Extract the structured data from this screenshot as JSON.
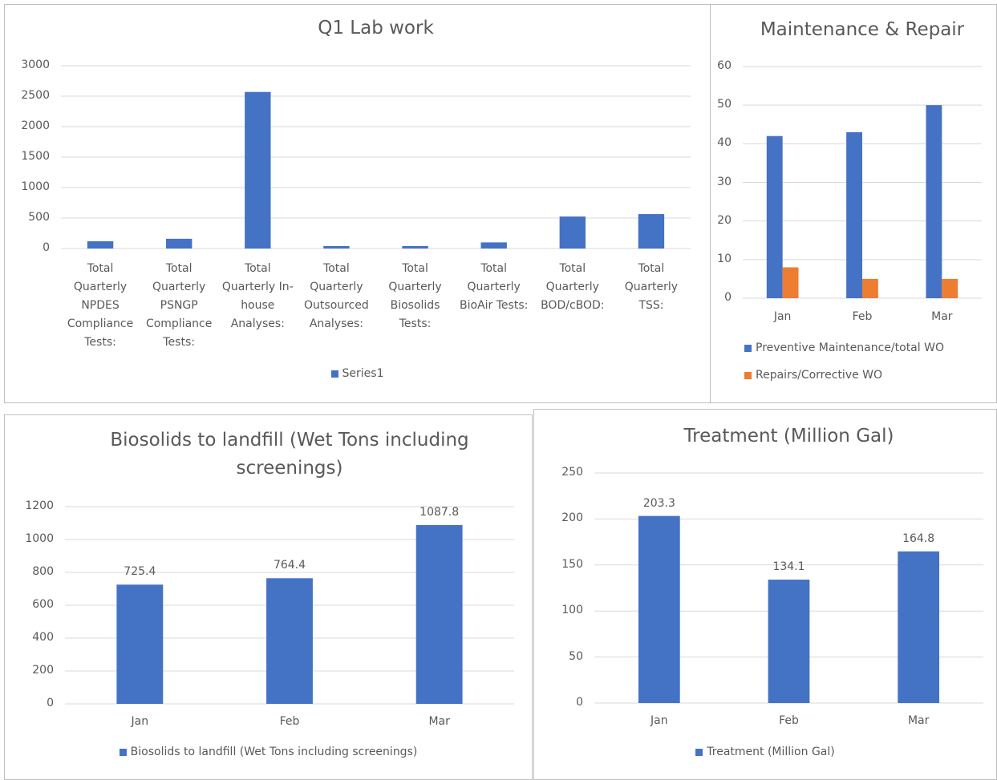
{
  "chart_data": [
    {
      "type": "bar",
      "title": "Q1 Lab work",
      "categories": [
        "Total Quarterly NPDES Compliance Tests:",
        "Total Quarterly PSNGP Compliance Tests:",
        "Total Quarterly In-house Analyses:",
        "Total Quarterly Outsourced Analyses:",
        "Total Quarterly Biosolids Tests:",
        "Total Quarterly BioAir Tests:",
        "Total Quarterly BOD/cBOD:",
        "Total Quarterly TSS:"
      ],
      "series": [
        {
          "name": "Series1",
          "color": "#4472c4",
          "values": [
            120,
            160,
            2570,
            40,
            40,
            100,
            525,
            565
          ]
        }
      ],
      "ylim": [
        0,
        3000
      ],
      "yticks": [
        0,
        500,
        1000,
        1500,
        2000,
        2500,
        3000
      ],
      "grid": true,
      "legend": "bottom"
    },
    {
      "type": "bar",
      "title": "Maintenance & Repair",
      "categories": [
        "Jan",
        "Feb",
        "Mar"
      ],
      "series": [
        {
          "name": "Preventive Maintenance/total WO",
          "color": "#4472c4",
          "values": [
            42,
            43,
            50
          ]
        },
        {
          "name": "Repairs/Corrective WO",
          "color": "#ed7d31",
          "values": [
            8,
            5,
            5
          ]
        }
      ],
      "ylim": [
        0,
        60
      ],
      "yticks": [
        0,
        10,
        20,
        30,
        40,
        50,
        60
      ],
      "grid": true,
      "legend": "bottom"
    },
    {
      "type": "bar",
      "title": "Biosolids to landfill (Wet Tons including screenings)",
      "categories": [
        "Jan",
        "Feb",
        "Mar"
      ],
      "series": [
        {
          "name": "Biosolids to landfill (Wet Tons including screenings)",
          "color": "#4472c4",
          "values": [
            725.4,
            764.4,
            1087.8
          ]
        }
      ],
      "ylim": [
        0,
        1200
      ],
      "yticks": [
        0,
        200,
        400,
        600,
        800,
        1000,
        1200
      ],
      "grid": true,
      "data_labels": true,
      "legend": "bottom"
    },
    {
      "type": "bar",
      "title": "Treatment (Million Gal)",
      "categories": [
        "Jan",
        "Feb",
        "Mar"
      ],
      "series": [
        {
          "name": "Treatment (Million Gal)",
          "color": "#4472c4",
          "values": [
            203.3,
            134.1,
            164.8
          ]
        }
      ],
      "ylim": [
        0,
        250
      ],
      "yticks": [
        0,
        50,
        100,
        150,
        200,
        250
      ],
      "grid": true,
      "data_labels": true,
      "legend": "bottom"
    }
  ]
}
